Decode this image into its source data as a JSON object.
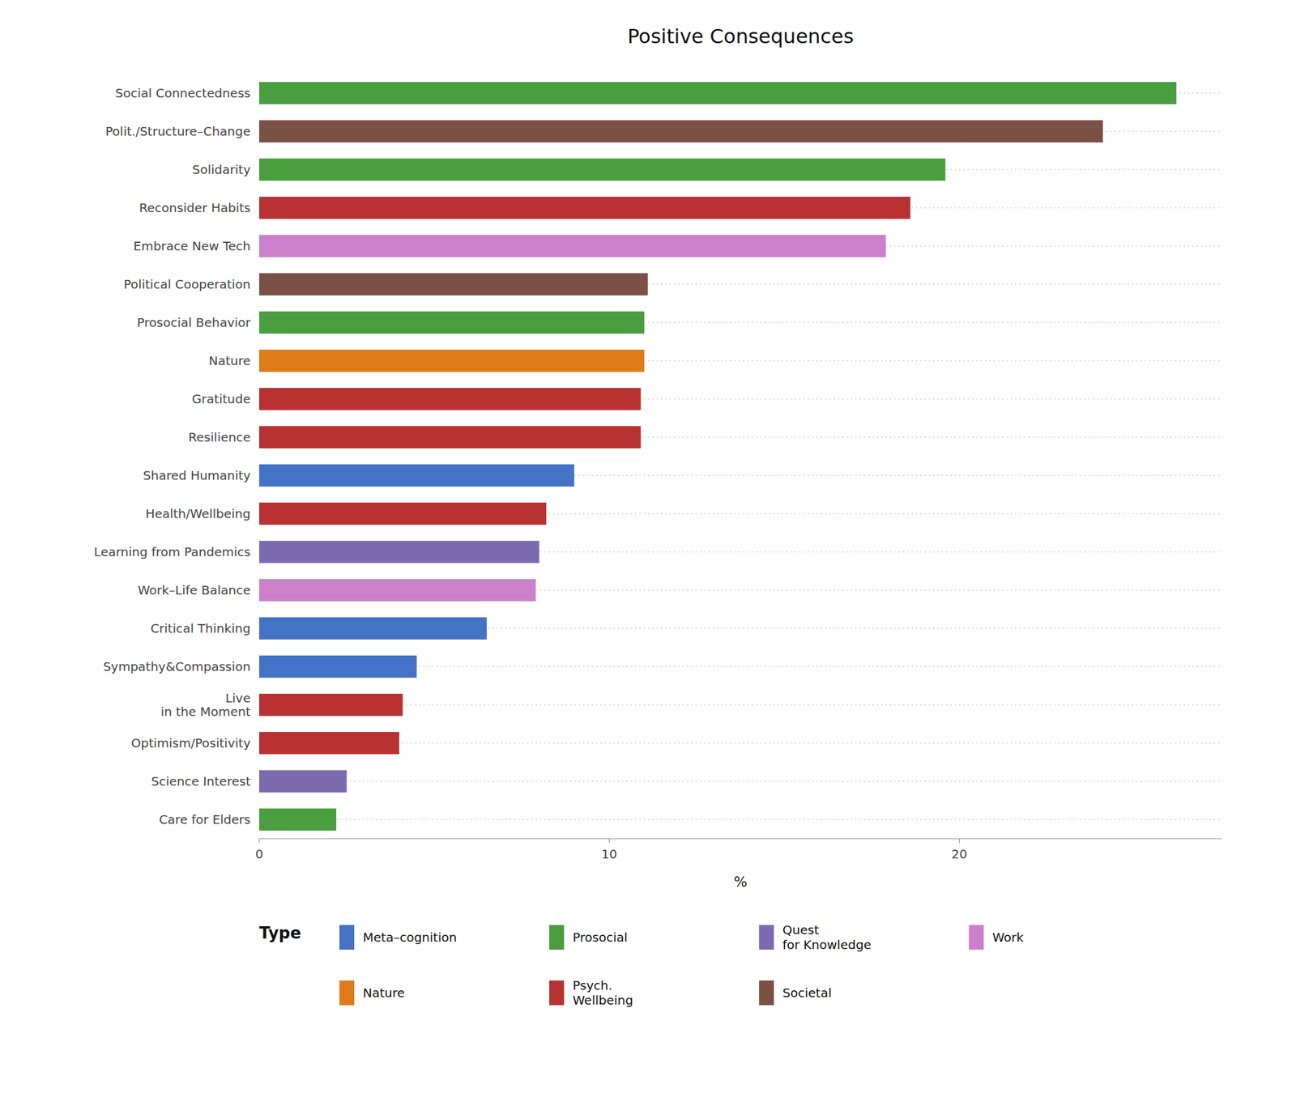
{
  "chart_data": {
    "type": "bar",
    "title": "Positive Consequences",
    "orientation": "horizontal",
    "stacked": true,
    "grid": true,
    "categories": [
      "Social Connectedness",
      "Polit./Structure–Change",
      "Solidarity",
      "Reconsider Habits",
      "Embrace New Tech",
      "Political Cooperation",
      "Prosocial Behavior",
      "Nature",
      "Gratitude",
      "Resilience",
      "Shared Humanity",
      "Health/Wellbeing",
      "Learning from Pandemics",
      "Work–Life Balance",
      "Critical Thinking",
      "Sympathy&Compassion",
      "Live\nin the Moment",
      "Optimism/Positivity",
      "Science Interest",
      "Care for Elders"
    ],
    "series": [
      {
        "name": "Meta–cognition",
        "color": "#4472c4",
        "values": [
          null,
          null,
          null,
          null,
          null,
          null,
          null,
          null,
          null,
          null,
          9.0,
          null,
          null,
          null,
          6.5,
          4.5,
          null,
          null,
          null,
          null
        ]
      },
      {
        "name": "Prosocial",
        "color": "#4a9e3f",
        "values": [
          26.2,
          null,
          19.6,
          null,
          null,
          null,
          11.0,
          null,
          null,
          null,
          null,
          null,
          null,
          null,
          null,
          null,
          null,
          null,
          null,
          2.2
        ]
      },
      {
        "name": "Quest\nfor Knowledge",
        "color": "#7d6bb0",
        "values": [
          null,
          null,
          null,
          null,
          null,
          null,
          null,
          null,
          null,
          null,
          null,
          null,
          8.0,
          null,
          null,
          null,
          null,
          null,
          2.5,
          null
        ]
      },
      {
        "name": "Work",
        "color": "#cc80cc",
        "values": [
          null,
          null,
          null,
          null,
          17.9,
          null,
          null,
          null,
          null,
          null,
          null,
          null,
          null,
          7.9,
          null,
          null,
          null,
          null,
          null,
          null
        ]
      },
      {
        "name": "Nature",
        "color": "#e07b1a",
        "values": [
          null,
          null,
          null,
          null,
          null,
          null,
          null,
          11.0,
          null,
          null,
          null,
          null,
          null,
          null,
          null,
          null,
          null,
          null,
          null,
          null
        ]
      },
      {
        "name": "Psych.\nWellbeing",
        "color": "#b83232",
        "values": [
          null,
          null,
          null,
          18.6,
          null,
          null,
          null,
          null,
          10.9,
          10.9,
          null,
          8.2,
          null,
          null,
          null,
          null,
          4.1,
          4.0,
          null,
          null
        ]
      },
      {
        "name": "Societal",
        "color": "#7b5145",
        "values": [
          null,
          24.1,
          null,
          null,
          null,
          11.1,
          null,
          null,
          null,
          null,
          null,
          null,
          null,
          null,
          null,
          null,
          null,
          null,
          null,
          null
        ]
      }
    ],
    "xlabel": "%",
    "xlim": [
      0,
      27.5
    ],
    "xticks": [
      0,
      10,
      20
    ],
    "legend_title": "Type"
  }
}
